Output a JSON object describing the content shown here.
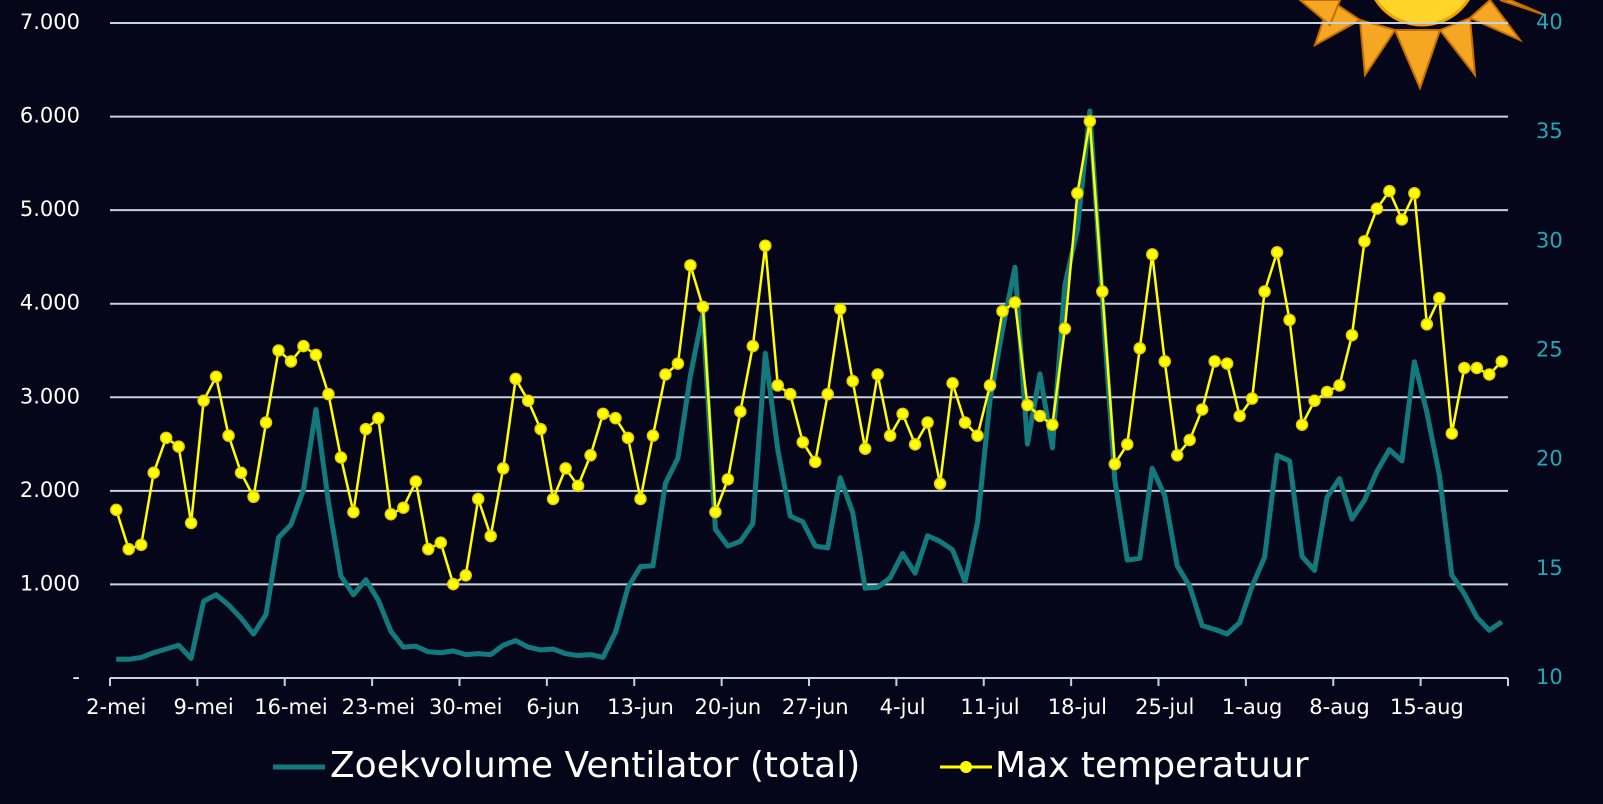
{
  "chart_data": {
    "type": "line",
    "categories": [
      "2-mei",
      null,
      null,
      null,
      null,
      null,
      null,
      "9-mei",
      null,
      null,
      null,
      null,
      null,
      null,
      "16-mei",
      null,
      null,
      null,
      null,
      null,
      null,
      "23-mei",
      null,
      null,
      null,
      null,
      null,
      null,
      "30-mei",
      null,
      null,
      null,
      null,
      null,
      null,
      "6-jun",
      null,
      null,
      null,
      null,
      null,
      null,
      "13-jun",
      null,
      null,
      null,
      null,
      null,
      null,
      "20-jun",
      null,
      null,
      null,
      null,
      null,
      null,
      "27-jun",
      null,
      null,
      null,
      null,
      null,
      null,
      "4-jul",
      null,
      null,
      null,
      null,
      null,
      null,
      "11-jul",
      null,
      null,
      null,
      null,
      null,
      null,
      "18-jul",
      null,
      null,
      null,
      null,
      null,
      null,
      "25-jul",
      null,
      null,
      null,
      null,
      null,
      null,
      "1-aug",
      null,
      null,
      null,
      null,
      null,
      null,
      "8-aug",
      null,
      null,
      null,
      null,
      null,
      null,
      "15-aug",
      null,
      null,
      null,
      null,
      null,
      null
    ],
    "series": [
      {
        "name": "Zoekvolume Ventilator (total)",
        "color": "#127a7c",
        "axis": "y",
        "marker": false,
        "values": [
          200,
          200,
          220,
          270,
          310,
          350,
          210,
          820,
          890,
          780,
          640,
          470,
          680,
          1500,
          1640,
          2010,
          2870,
          1880,
          1090,
          890,
          1050,
          830,
          500,
          330,
          340,
          280,
          270,
          290,
          250,
          260,
          250,
          350,
          400,
          330,
          300,
          310,
          260,
          240,
          250,
          220,
          490,
          970,
          1190,
          1200,
          2080,
          2350,
          3230,
          3900,
          1590,
          1410,
          1460,
          1650,
          3470,
          2440,
          1730,
          1670,
          1410,
          1390,
          2140,
          1770,
          960,
          970,
          1070,
          1330,
          1120,
          1520,
          1460,
          1370,
          1030,
          1660,
          2970,
          3720,
          4390,
          2500,
          3250,
          2460,
          4200,
          4790,
          6060,
          4040,
          2120,
          1260,
          1280,
          2240,
          1950,
          1200,
          980,
          560,
          520,
          470,
          590,
          980,
          1290,
          2380,
          2320,
          1300,
          1150,
          1930,
          2130,
          1700,
          1900,
          2210,
          2440,
          2320,
          3380,
          2840,
          2170,
          1100,
          900,
          650,
          510,
          600
        ]
      },
      {
        "name": "Max temperatuur",
        "color": "#ffff00",
        "axis": "y2",
        "marker": true,
        "values": [
          17.7,
          15.9,
          16.1,
          19.4,
          21.0,
          20.6,
          17.1,
          22.7,
          23.8,
          21.1,
          19.4,
          18.3,
          21.7,
          25.0,
          24.5,
          25.2,
          24.8,
          23.0,
          20.1,
          17.6,
          21.4,
          21.9,
          17.5,
          17.8,
          19.0,
          15.9,
          16.2,
          14.3,
          14.7,
          18.2,
          16.5,
          19.6,
          23.7,
          22.7,
          21.4,
          18.2,
          19.6,
          18.8,
          20.2,
          22.1,
          21.9,
          21.0,
          18.2,
          21.1,
          23.9,
          24.4,
          28.9,
          27.0,
          17.6,
          19.1,
          22.2,
          25.2,
          29.8,
          23.4,
          23.0,
          20.8,
          19.9,
          23.0,
          26.9,
          23.6,
          20.5,
          23.9,
          21.1,
          22.1,
          20.7,
          21.7,
          18.9,
          23.5,
          21.7,
          21.1,
          23.4,
          26.8,
          27.2,
          22.5,
          22.0,
          21.6,
          26.0,
          32.2,
          35.5,
          27.7,
          19.8,
          20.7,
          25.1,
          29.4,
          24.5,
          20.2,
          20.9,
          22.3,
          24.5,
          24.4,
          22.0,
          22.8,
          27.7,
          29.5,
          26.4,
          21.6,
          22.7,
          23.1,
          23.4,
          25.7,
          30.0,
          31.5,
          32.3,
          31.0,
          32.2,
          26.2,
          27.4,
          21.2,
          24.2,
          24.2,
          23.9,
          24.5
        ]
      }
    ],
    "ylim": [
      0,
      7000
    ],
    "yticks": [
      {
        "value": 0,
        "label": "-"
      },
      {
        "value": 1000,
        "label": "1.000"
      },
      {
        "value": 2000,
        "label": "2.000"
      },
      {
        "value": 3000,
        "label": "3.000"
      },
      {
        "value": 4000,
        "label": "4.000"
      },
      {
        "value": 5000,
        "label": "5.000"
      },
      {
        "value": 6000,
        "label": "6.000"
      },
      {
        "value": 7000,
        "label": "7.000"
      }
    ],
    "y2lim": [
      10,
      40
    ],
    "y2ticks": [
      10,
      15,
      20,
      25,
      30,
      35,
      40
    ],
    "grid": true,
    "legend": "bottom"
  }
}
